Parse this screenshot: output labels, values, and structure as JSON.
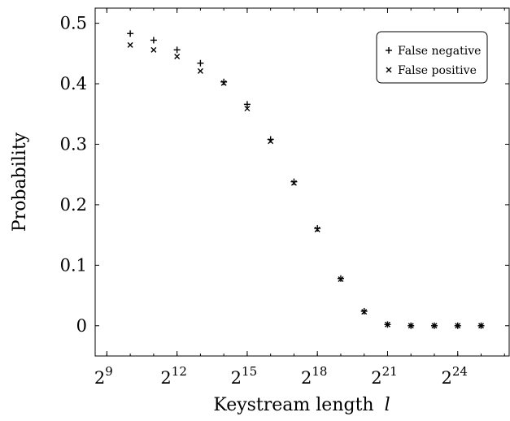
{
  "chart_data": {
    "type": "scatter",
    "xlabel": "Keystream length",
    "xlabel_var": "l",
    "ylabel": "Probability",
    "x_scale": "log2",
    "xlim_exponent": [
      8.5,
      26.2
    ],
    "ylim": [
      -0.05,
      0.525
    ],
    "grid": false,
    "legend_position": "top-right",
    "x_ticks": [
      {
        "base": "2",
        "exp": "9",
        "value": 9
      },
      {
        "base": "2",
        "exp": "12",
        "value": 12
      },
      {
        "base": "2",
        "exp": "15",
        "value": 15
      },
      {
        "base": "2",
        "exp": "18",
        "value": 18
      },
      {
        "base": "2",
        "exp": "21",
        "value": 21
      },
      {
        "base": "2",
        "exp": "24",
        "value": 24
      }
    ],
    "y_ticks": [
      {
        "label": "0",
        "value": 0
      },
      {
        "label": "0.1",
        "value": 0.1
      },
      {
        "label": "0.2",
        "value": 0.2
      },
      {
        "label": "0.3",
        "value": 0.3
      },
      {
        "label": "0.4",
        "value": 0.4
      },
      {
        "label": "0.5",
        "value": 0.5
      }
    ],
    "x_exponent": [
      10,
      11,
      12,
      13,
      14,
      15,
      16,
      17,
      18,
      19,
      20,
      21,
      22,
      23,
      24,
      25
    ],
    "series": [
      {
        "name": "False negative",
        "marker": "plus",
        "values": [
          0.483,
          0.472,
          0.456,
          0.434,
          0.403,
          0.366,
          0.308,
          0.238,
          0.161,
          0.078,
          0.024,
          0.002,
          0.0,
          0.0,
          0.0,
          0.0
        ]
      },
      {
        "name": "False positive",
        "marker": "cross",
        "values": [
          0.464,
          0.456,
          0.445,
          0.421,
          0.401,
          0.359,
          0.305,
          0.236,
          0.159,
          0.077,
          0.023,
          0.002,
          0.0,
          0.0,
          0.0,
          0.0
        ]
      }
    ]
  }
}
